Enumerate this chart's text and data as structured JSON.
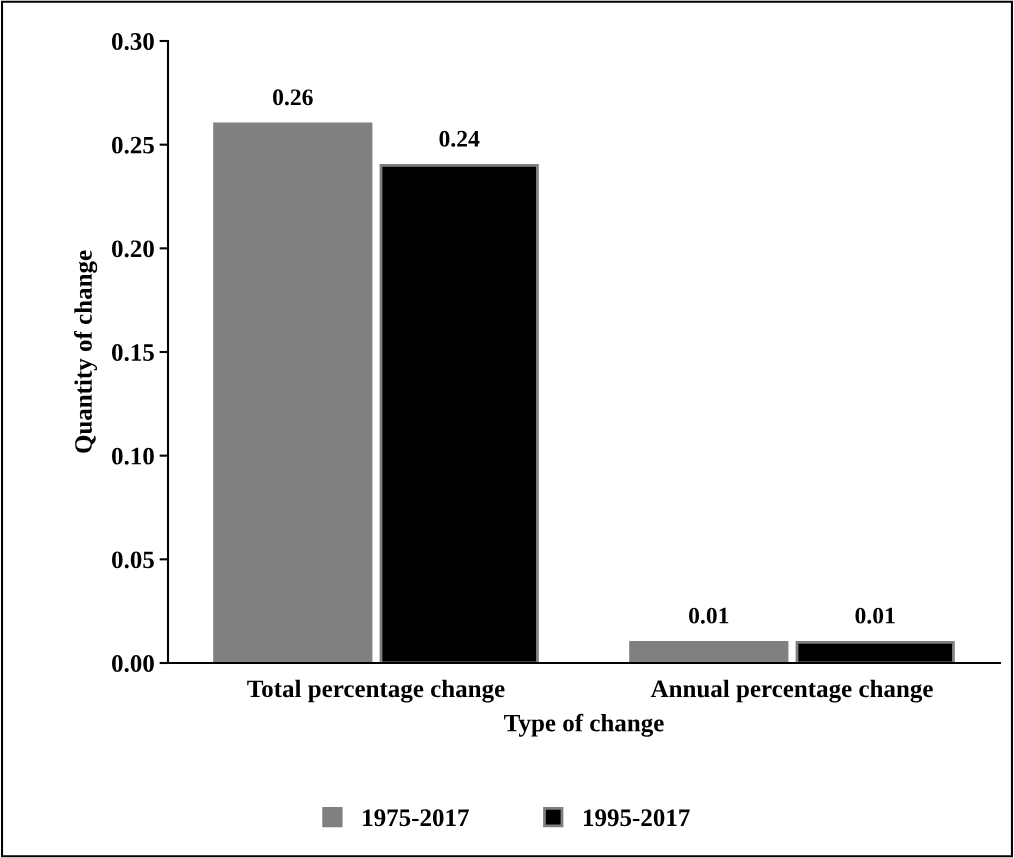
{
  "chart_data": {
    "type": "bar",
    "xlabel": "Type of change",
    "ylabel": "Quantity of change",
    "categories": [
      "Total percentage change",
      "Annual percentage change"
    ],
    "series": [
      {
        "name": "1975-2017",
        "color": "#808080",
        "values": [
          0.26,
          0.01
        ]
      },
      {
        "name": "1995-2017",
        "color": "#000000",
        "values": [
          0.24,
          0.01
        ]
      }
    ],
    "ylim": [
      0,
      0.3
    ],
    "yticks": [
      {
        "value": 0,
        "label": "0.00"
      },
      {
        "value": 0.05,
        "label": "0.05"
      },
      {
        "value": 0.1,
        "label": "0.10"
      },
      {
        "value": 0.15,
        "label": "0.15"
      },
      {
        "value": 0.2,
        "label": "0.20"
      },
      {
        "value": 0.25,
        "label": "0.25"
      },
      {
        "value": 0.3,
        "label": "0.30"
      }
    ],
    "data_labels": true,
    "grid": false,
    "legend": "bottom"
  }
}
